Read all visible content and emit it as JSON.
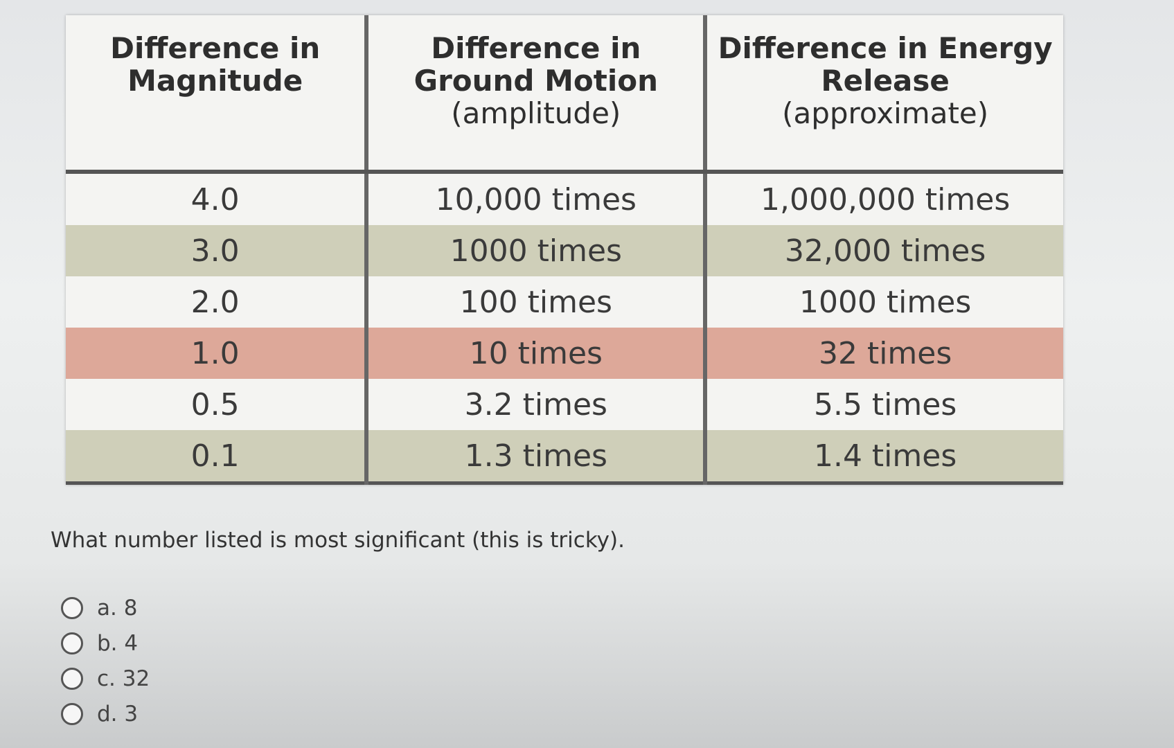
{
  "table": {
    "headers": [
      {
        "title": "Difference in Magnitude"
      },
      {
        "title": "Difference in Ground Motion",
        "subtitle": "(amplitude)"
      },
      {
        "title": "Difference in Energy Release",
        "subtitle": "(approximate)"
      }
    ],
    "rows": [
      [
        "4.0",
        "10,000 times",
        "1,000,000 times"
      ],
      [
        "3.0",
        "1000 times",
        "32,000 times"
      ],
      [
        "2.0",
        "100 times",
        "1000 times"
      ],
      [
        "1.0",
        "10 times",
        "32 times"
      ],
      [
        "0.5",
        "3.2 times",
        "5.5 times"
      ],
      [
        "0.1",
        "1.3 times",
        "1.4 times"
      ]
    ]
  },
  "question": {
    "text": "What number listed is most significant (this is tricky).",
    "options": [
      "a. 8",
      "b. 4",
      "c. 32",
      "d. 3"
    ]
  }
}
